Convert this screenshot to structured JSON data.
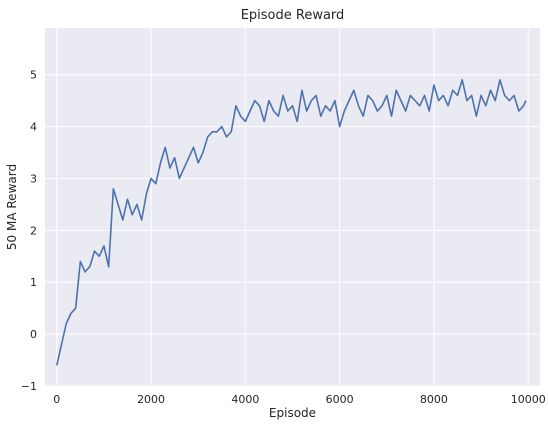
{
  "chart_data": {
    "type": "line",
    "title": "Episode Reward",
    "xlabel": "Episode",
    "ylabel": "50 MA Reward",
    "xlim": [
      -250,
      10250
    ],
    "ylim": [
      -1,
      5.9
    ],
    "xticks": [
      0,
      2000,
      4000,
      6000,
      8000,
      10000
    ],
    "yticks": [
      -1,
      0,
      1,
      2,
      3,
      4,
      5
    ],
    "grid": true,
    "legend": "none",
    "colors": {
      "background": "#EAEAF2",
      "grid": "#FFFFFF",
      "line": "#4C72B0",
      "text": "#262626"
    },
    "series": [
      {
        "x": [
          0,
          100,
          200,
          300,
          400,
          500,
          600,
          700,
          800,
          900,
          1000,
          1100,
          1200,
          1300,
          1400,
          1500,
          1600,
          1700,
          1800,
          1900,
          2000,
          2100,
          2200,
          2300,
          2400,
          2500,
          2600,
          2700,
          2800,
          2900,
          3000,
          3100,
          3200,
          3300,
          3400,
          3500,
          3600,
          3700,
          3800,
          3900,
          4000,
          4100,
          4200,
          4300,
          4400,
          4500,
          4600,
          4700,
          4800,
          4900,
          5000,
          5100,
          5200,
          5300,
          5400,
          5500,
          5600,
          5700,
          5800,
          5900,
          6000,
          6100,
          6200,
          6300,
          6400,
          6500,
          6600,
          6700,
          6800,
          6900,
          7000,
          7100,
          7200,
          7300,
          7400,
          7500,
          7600,
          7700,
          7800,
          7900,
          8000,
          8100,
          8200,
          8300,
          8400,
          8500,
          8600,
          8700,
          8800,
          8900,
          9000,
          9100,
          9200,
          9300,
          9400,
          9500,
          9600,
          9700,
          9800,
          9900,
          9950
        ],
        "values": [
          -0.6,
          -0.2,
          0.2,
          0.4,
          0.5,
          1.4,
          1.2,
          1.3,
          1.6,
          1.5,
          1.7,
          1.3,
          2.8,
          2.5,
          2.2,
          2.6,
          2.3,
          2.5,
          2.2,
          2.7,
          3.0,
          2.9,
          3.3,
          3.6,
          3.2,
          3.4,
          3.0,
          3.2,
          3.4,
          3.6,
          3.3,
          3.5,
          3.8,
          3.9,
          3.9,
          4.0,
          3.8,
          3.9,
          4.4,
          4.2,
          4.1,
          4.3,
          4.5,
          4.4,
          4.1,
          4.5,
          4.3,
          4.2,
          4.6,
          4.3,
          4.4,
          4.1,
          4.7,
          4.3,
          4.5,
          4.6,
          4.2,
          4.4,
          4.3,
          4.5,
          4.0,
          4.3,
          4.5,
          4.7,
          4.4,
          4.2,
          4.6,
          4.5,
          4.3,
          4.4,
          4.6,
          4.2,
          4.7,
          4.5,
          4.3,
          4.6,
          4.5,
          4.4,
          4.6,
          4.3,
          4.8,
          4.5,
          4.6,
          4.4,
          4.7,
          4.6,
          4.9,
          4.5,
          4.6,
          4.2,
          4.6,
          4.4,
          4.7,
          4.5,
          4.9,
          4.6,
          4.5,
          4.6,
          4.3,
          4.4,
          4.5
        ]
      }
    ]
  }
}
